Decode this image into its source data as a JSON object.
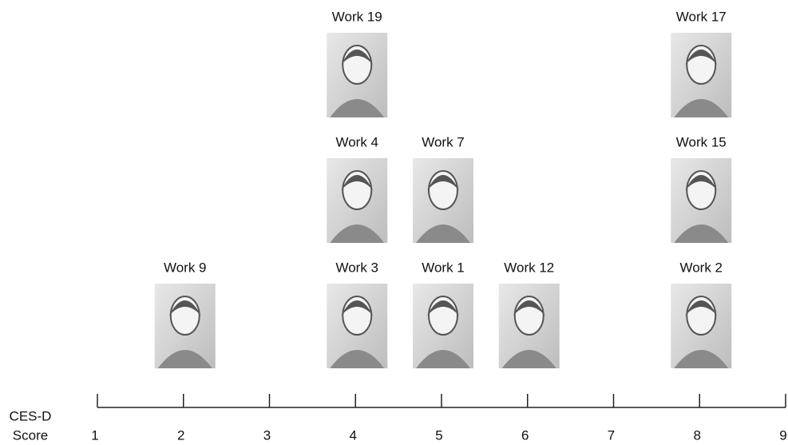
{
  "chart_data": {
    "type": "strip",
    "xlabel": [
      "CES-D",
      "Score"
    ],
    "xlim": [
      1,
      9
    ],
    "xticks": [
      1,
      2,
      3,
      4,
      5,
      6,
      7,
      8,
      9
    ],
    "points": [
      {
        "label": "Work 9",
        "x": 2
      },
      {
        "label": "Work 3",
        "x": 4
      },
      {
        "label": "Work 4",
        "x": 4
      },
      {
        "label": "Work 19",
        "x": 4
      },
      {
        "label": "Work 1",
        "x": 5
      },
      {
        "label": "Work 7",
        "x": 5
      },
      {
        "label": "Work 12",
        "x": 6
      },
      {
        "label": "Work 2",
        "x": 8
      },
      {
        "label": "Work 15",
        "x": 8
      },
      {
        "label": "Work 17",
        "x": 8
      }
    ]
  }
}
